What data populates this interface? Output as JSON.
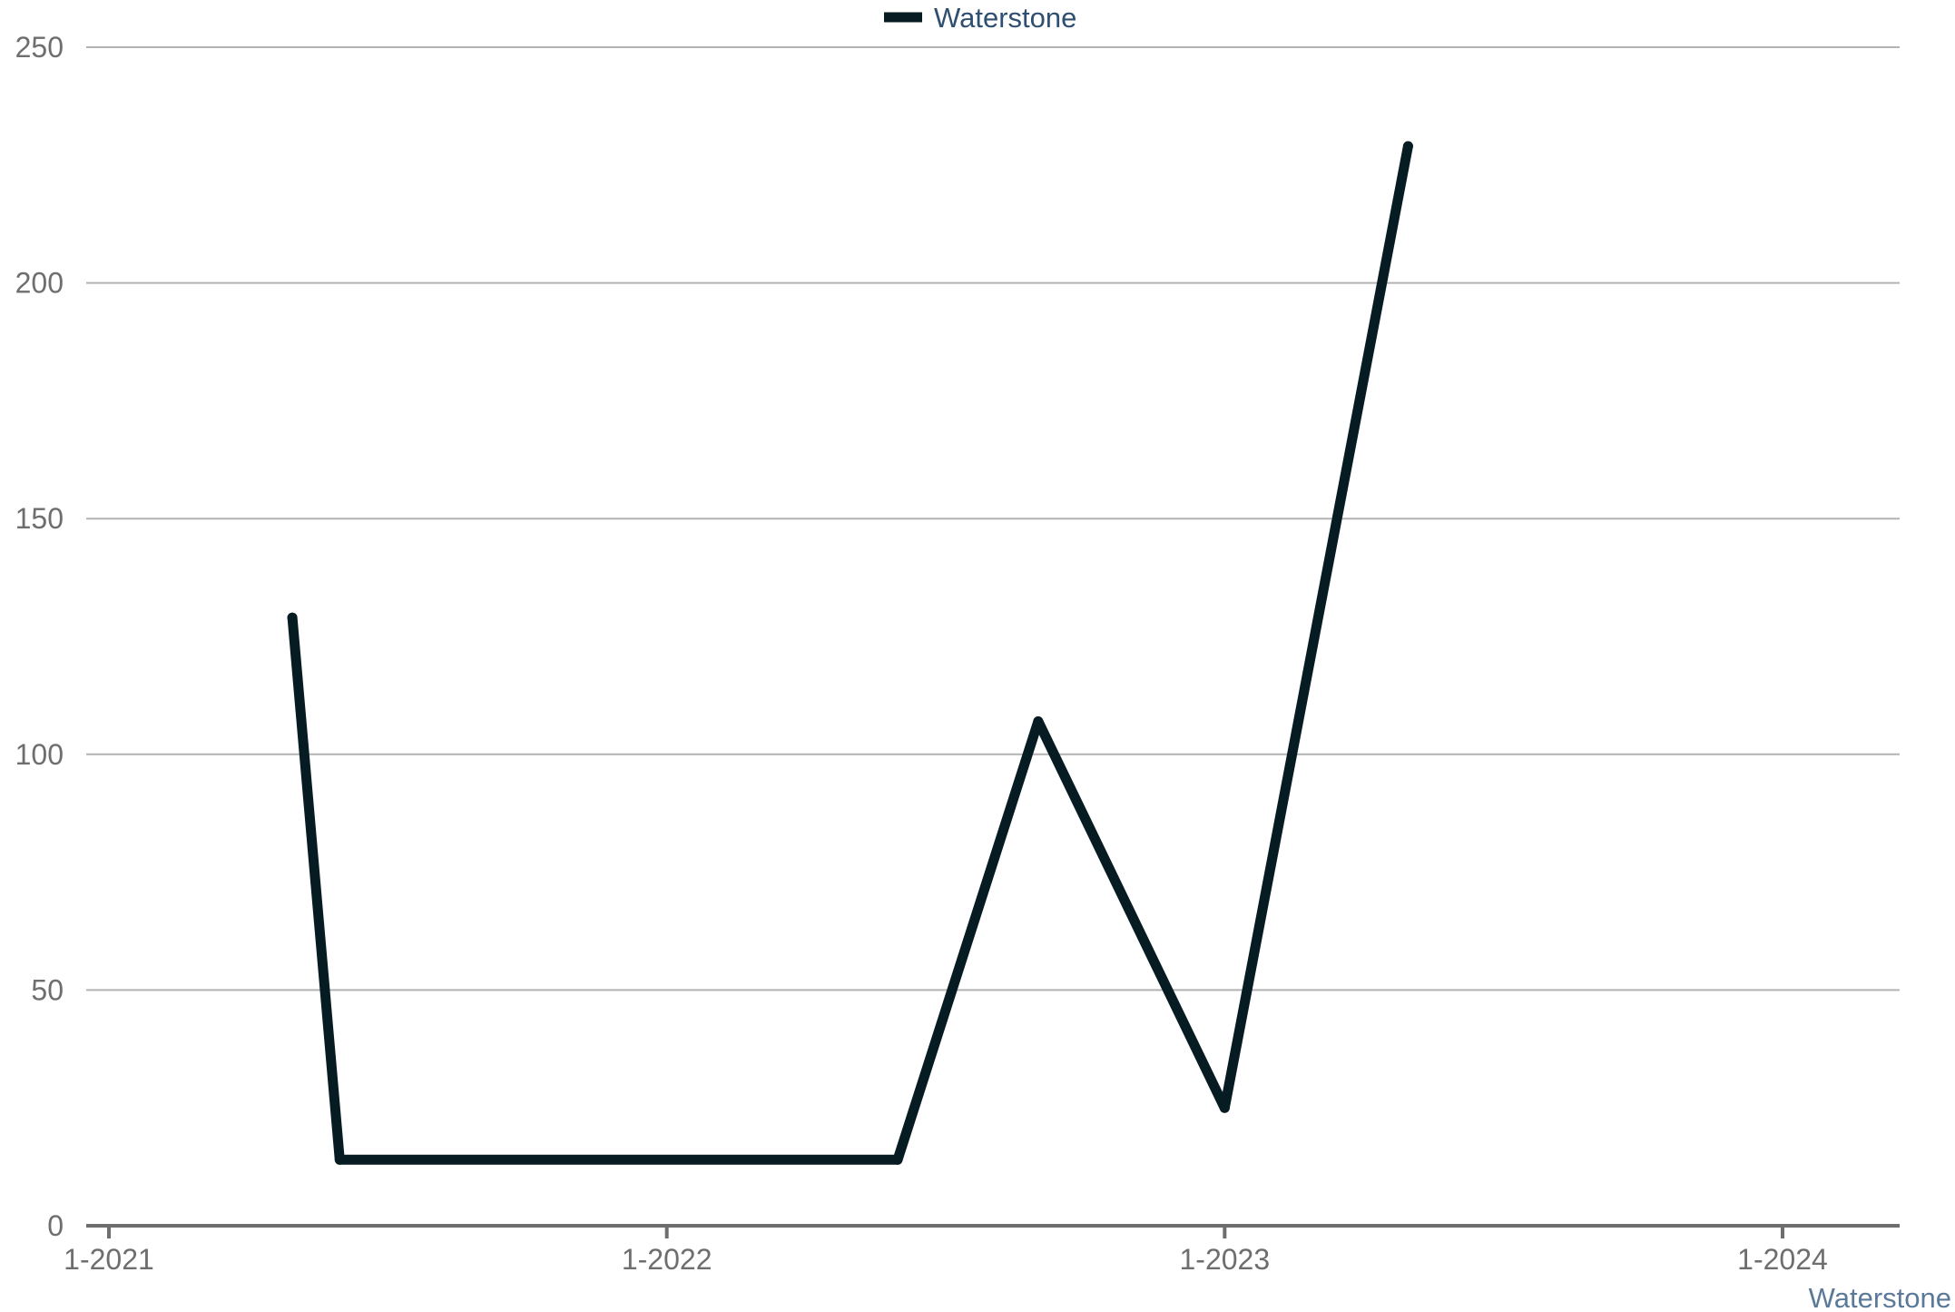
{
  "chart_data": {
    "type": "line",
    "x_type": "date",
    "xlim": [
      "2021-01-01",
      "2024-03-01"
    ],
    "ylim": [
      0,
      250
    ],
    "y_ticks": [
      0,
      50,
      100,
      150,
      200,
      250
    ],
    "x_ticks": [
      {
        "date": "2021-01-01",
        "label": "1-2021"
      },
      {
        "date": "2022-01-01",
        "label": "1-2022"
      },
      {
        "date": "2023-01-01",
        "label": "1-2023"
      },
      {
        "date": "2024-01-01",
        "label": "1-2024"
      }
    ],
    "grid": true,
    "legend_position": "top-center",
    "series": [
      {
        "name": "Waterstone",
        "color": "#061c22",
        "points": [
          {
            "x": "2021-05-01",
            "y": 129
          },
          {
            "x": "2021-06-01",
            "y": 14
          },
          {
            "x": "2022-06-01",
            "y": 14
          },
          {
            "x": "2022-09-01",
            "y": 107
          },
          {
            "x": "2023-01-01",
            "y": 25
          },
          {
            "x": "2023-05-01",
            "y": 229
          }
        ]
      }
    ],
    "source": "Waterstone"
  },
  "colors": {
    "series": "#061c22",
    "legend_text": "#2f4f70",
    "source_text": "#5b7a99",
    "grid": "#b3b3b3",
    "axis": "#6e6e6e"
  }
}
